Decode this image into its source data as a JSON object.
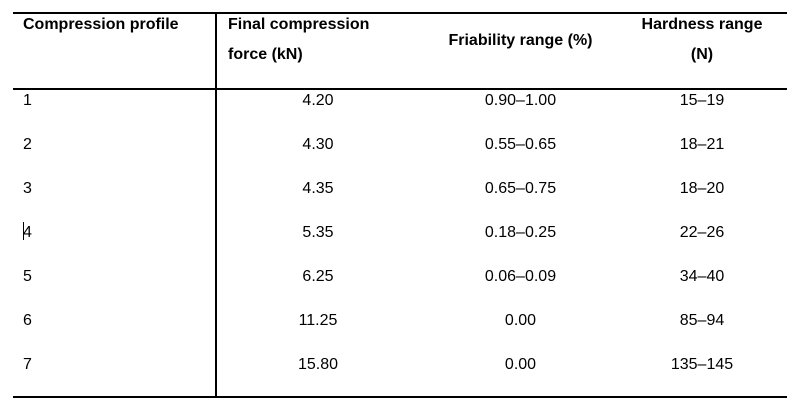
{
  "table": {
    "headers": [
      "Compression profile",
      [
        "Final compression",
        "force (kN)"
      ],
      "Friability range (%)",
      [
        "Hardness range",
        "(N)"
      ]
    ],
    "rows": [
      [
        "1",
        "4.20",
        "0.90–1.00",
        "15–19"
      ],
      [
        "2",
        "4.30",
        "0.55–0.65",
        "18–21"
      ],
      [
        "3",
        "4.35",
        "0.65–0.75",
        "18–20"
      ],
      [
        "4",
        "5.35",
        "0.18–0.25",
        "22–26"
      ],
      [
        "5",
        "6.25",
        "0.06–0.09",
        "34–40"
      ],
      [
        "6",
        "11.25",
        "0.00",
        "85–94"
      ],
      [
        "7",
        "15.80",
        "0.00",
        "135–145"
      ]
    ],
    "text_cursor_row": 3
  }
}
